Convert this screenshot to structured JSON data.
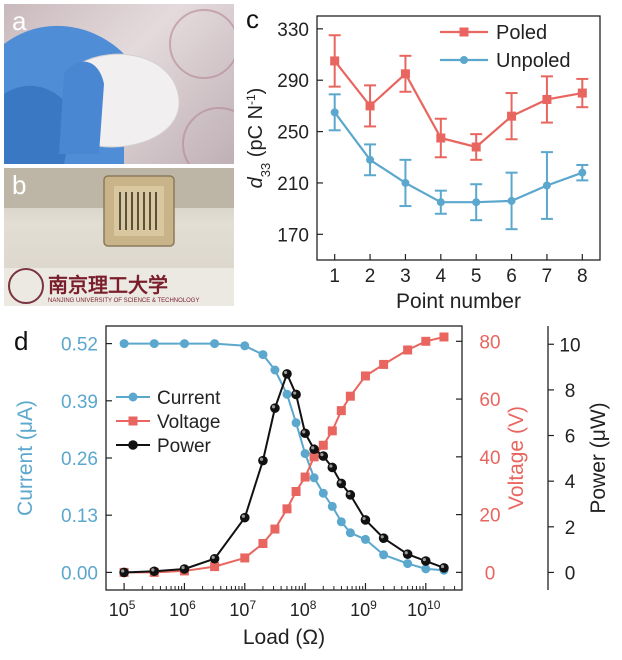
{
  "panels": {
    "a": "a",
    "b": "b",
    "c": "c",
    "d": "d"
  },
  "photo_b": {
    "sign_text": "南京理工大学",
    "banner_text": "NANJING UNIVERSITY OF SCIENCE & TECHNOLOGY"
  },
  "colors": {
    "poled": "#e8665f",
    "unpoled": "#5ba7cd",
    "current": "#5ba7cd",
    "voltage": "#e8665f",
    "power": "#111111"
  },
  "chart_data": [
    {
      "id": "c",
      "type": "line",
      "xlabel": "Point number",
      "ylabel": "d33 (pC N-1)",
      "ylabel_parts": {
        "main": "d",
        "sub": "33",
        "rest": " (pC N",
        "sup": "-1",
        "close": ")"
      },
      "x": [
        1,
        2,
        3,
        4,
        5,
        6,
        7,
        8
      ],
      "xlim": [
        0.5,
        8.5
      ],
      "ylim": [
        150,
        340
      ],
      "yticks": [
        170,
        210,
        250,
        290,
        330
      ],
      "legend": "top-right",
      "series": [
        {
          "name": "Poled",
          "marker": "square",
          "values": [
            305,
            270,
            295,
            245,
            238,
            262,
            275,
            280
          ],
          "errors": [
            20,
            16,
            14,
            15,
            10,
            18,
            18,
            11
          ]
        },
        {
          "name": "Unpoled",
          "marker": "circle",
          "values": [
            265,
            228,
            210,
            195,
            195,
            196,
            208,
            218
          ],
          "errors": [
            14,
            12,
            18,
            9,
            14,
            22,
            26,
            6
          ]
        }
      ]
    },
    {
      "id": "d",
      "type": "line",
      "xlabel": "Load (Ω)",
      "xscale": "log",
      "xlim_exp": [
        4.7,
        10.6
      ],
      "xticks": [
        {
          "base": "10",
          "exp": "5",
          "e": 5
        },
        {
          "base": "10",
          "exp": "6",
          "e": 6
        },
        {
          "base": "10",
          "exp": "7",
          "e": 7
        },
        {
          "base": "10",
          "exp": "8",
          "e": 8
        },
        {
          "base": "10",
          "exp": "9",
          "e": 9
        },
        {
          "base": "10",
          "exp": "10",
          "e": 10
        }
      ],
      "y_current": {
        "label": "Current (μA)",
        "ylim": [
          -0.04,
          0.56
        ],
        "ticks": [
          "0.00",
          "0.13",
          "0.26",
          "0.39",
          "0.52"
        ]
      },
      "y_voltage": {
        "label": "Voltage (V)",
        "ylim": [
          -6.1,
          85.3
        ],
        "ticks": [
          "0",
          "20",
          "40",
          "60",
          "80"
        ]
      },
      "y_power": {
        "label": "Power (μW)",
        "ylim": [
          -0.77,
          10.8
        ],
        "ticks": [
          "0",
          "2",
          "4",
          "6",
          "8",
          "10"
        ]
      },
      "legend": "top-left",
      "x": [
        100000,
        316000,
        1000000,
        3160000,
        10000000,
        20000000,
        31600000,
        50100000,
        70800000,
        100000000,
        141000000,
        200000000,
        282000000,
        398000000,
        562000000,
        1000000000,
        2000000000,
        5000000000,
        10000000000,
        20000000000
      ],
      "series": [
        {
          "name": "Current",
          "axis": "current",
          "marker": "circle",
          "values": [
            0.52,
            0.52,
            0.52,
            0.52,
            0.515,
            0.495,
            0.46,
            0.405,
            0.34,
            0.27,
            0.215,
            0.18,
            0.15,
            0.115,
            0.09,
            0.075,
            0.04,
            0.02,
            0.008,
            0.005
          ]
        },
        {
          "name": "Voltage",
          "axis": "voltage",
          "marker": "square",
          "values": [
            0,
            0,
            0.5,
            2,
            5,
            10,
            15,
            22,
            28,
            33,
            40,
            44,
            49,
            56,
            61,
            68,
            72,
            77,
            80,
            81.5
          ]
        },
        {
          "name": "Power",
          "axis": "power",
          "marker": "sphere",
          "values": [
            0,
            0.05,
            0.15,
            0.6,
            2.4,
            4.9,
            7.2,
            8.7,
            7.8,
            6.1,
            5.4,
            5.1,
            4.6,
            3.9,
            3.4,
            2.3,
            1.5,
            0.8,
            0.5,
            0.2
          ]
        }
      ]
    }
  ]
}
